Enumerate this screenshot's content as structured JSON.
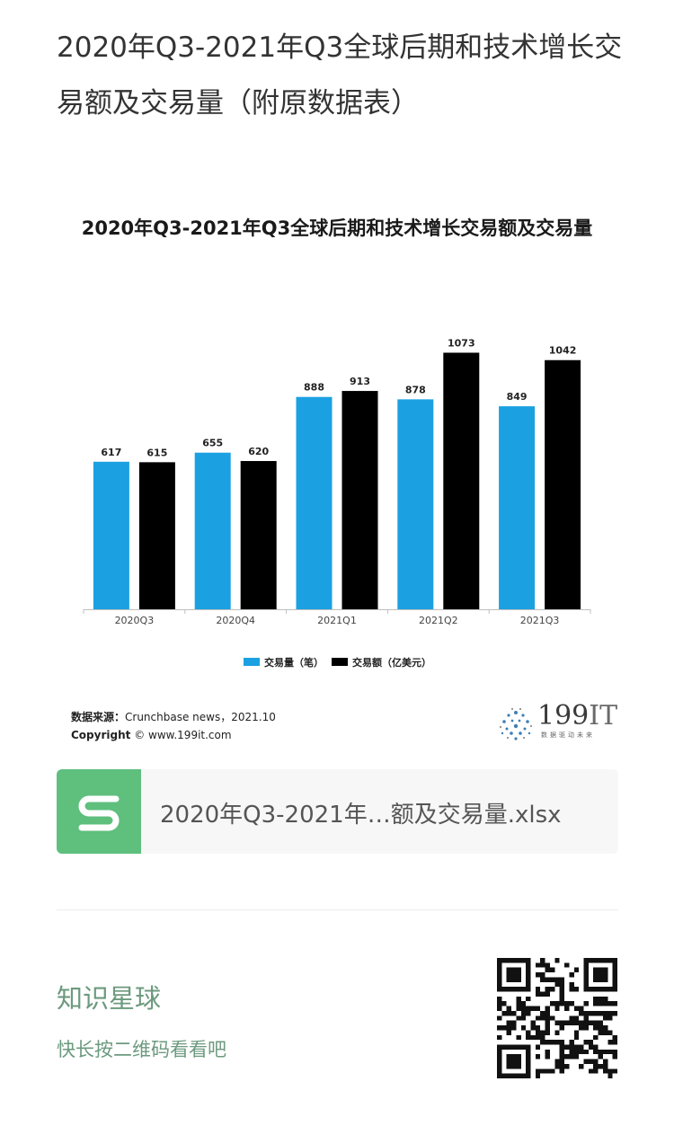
{
  "post": {
    "title": "2020年Q3-2021年Q3全球后期和技术增长交易额及交易量（附原数据表）"
  },
  "chart_data": {
    "type": "bar",
    "title": "2020年Q3-2021年Q3全球后期和技术增长交易额及交易量",
    "categories": [
      "2020Q3",
      "2020Q4",
      "2021Q1",
      "2021Q2",
      "2021Q3"
    ],
    "series": [
      {
        "name": "交易量（笔）",
        "values": [
          617,
          655,
          888,
          878,
          849
        ],
        "color": "#1ba1e2"
      },
      {
        "name": "交易额（亿美元）",
        "values": [
          615,
          620,
          913,
          1073,
          1042
        ],
        "color": "#000000"
      }
    ],
    "xlabel": "",
    "ylabel": "",
    "ylim": [
      0,
      1150
    ],
    "grid": false,
    "legend": "bottom-center",
    "data_labels": true
  },
  "source": {
    "label": "数据来源：",
    "text": "Crunchbase news，2021.10",
    "copyright_label": "Copyright",
    "copyright_text": "© www.199it.com"
  },
  "brand": {
    "number": "199",
    "suffix": "IT",
    "tagline": "数据驱动未来"
  },
  "file": {
    "icon": "spreadsheet-s-icon",
    "name": "2020年Q3-2021年…额及交易量.xlsx"
  },
  "planet": {
    "title": "知识星球",
    "subtitle": "快长按二维码看看吧",
    "qr_icon": "qr-code-icon"
  }
}
